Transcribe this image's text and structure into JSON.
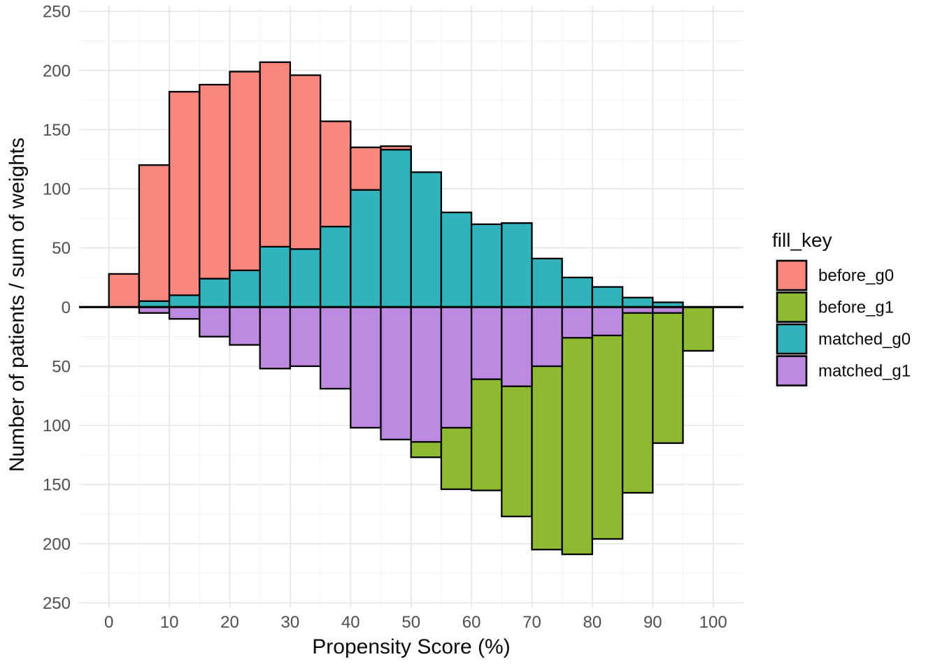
{
  "chart_data": {
    "type": "bar",
    "variant": "back-to-back mirror histogram (propensity score distribution before/after matching)",
    "title": "",
    "xlabel": "Propensity Score (%)",
    "ylabel": "Number of patients / sum of weights",
    "x_ticks": [
      0,
      10,
      20,
      30,
      40,
      50,
      60,
      70,
      80,
      90,
      100
    ],
    "y_ticks": [
      250,
      200,
      150,
      100,
      50,
      0,
      50,
      100,
      150,
      200,
      250
    ],
    "xlim": [
      0,
      100
    ],
    "ylim": [
      -250,
      250
    ],
    "grid": true,
    "bin_width": 5,
    "upper_series": [
      "before_g0",
      "matched_g0"
    ],
    "lower_series": [
      "before_g1",
      "matched_g1"
    ],
    "bins": [
      {
        "range": [
          0,
          5
        ],
        "before_g0": 28,
        "matched_g0": null,
        "before_g1": null,
        "matched_g1": null
      },
      {
        "range": [
          5,
          10
        ],
        "before_g0": 120,
        "matched_g0": 5,
        "before_g1": null,
        "matched_g1": 5
      },
      {
        "range": [
          10,
          15
        ],
        "before_g0": 182,
        "matched_g0": 10,
        "before_g1": null,
        "matched_g1": 10
      },
      {
        "range": [
          15,
          20
        ],
        "before_g0": 188,
        "matched_g0": 24,
        "before_g1": null,
        "matched_g1": 25
      },
      {
        "range": [
          20,
          25
        ],
        "before_g0": 199,
        "matched_g0": 31,
        "before_g1": null,
        "matched_g1": 32
      },
      {
        "range": [
          25,
          30
        ],
        "before_g0": 207,
        "matched_g0": 51,
        "before_g1": null,
        "matched_g1": 52
      },
      {
        "range": [
          30,
          35
        ],
        "before_g0": 196,
        "matched_g0": 49,
        "before_g1": null,
        "matched_g1": 50
      },
      {
        "range": [
          35,
          40
        ],
        "before_g0": 157,
        "matched_g0": 68,
        "before_g1": null,
        "matched_g1": 69
      },
      {
        "range": [
          40,
          45
        ],
        "before_g0": 135,
        "matched_g0": 99,
        "before_g1": null,
        "matched_g1": 102
      },
      {
        "range": [
          45,
          50
        ],
        "before_g0": 136,
        "matched_g0": 133,
        "before_g1": null,
        "matched_g1": 112
      },
      {
        "range": [
          50,
          55
        ],
        "before_g0": null,
        "matched_g0": 114,
        "before_g1": 127,
        "matched_g1": 114
      },
      {
        "range": [
          55,
          60
        ],
        "before_g0": null,
        "matched_g0": 80,
        "before_g1": 154,
        "matched_g1": 102
      },
      {
        "range": [
          60,
          65
        ],
        "before_g0": null,
        "matched_g0": 70,
        "before_g1": 155,
        "matched_g1": 61
      },
      {
        "range": [
          65,
          70
        ],
        "before_g0": null,
        "matched_g0": 71,
        "before_g1": 177,
        "matched_g1": 67
      },
      {
        "range": [
          70,
          75
        ],
        "before_g0": null,
        "matched_g0": 41,
        "before_g1": 205,
        "matched_g1": 50
      },
      {
        "range": [
          75,
          80
        ],
        "before_g0": null,
        "matched_g0": 25,
        "before_g1": 209,
        "matched_g1": 26
      },
      {
        "range": [
          80,
          85
        ],
        "before_g0": null,
        "matched_g0": 17,
        "before_g1": 196,
        "matched_g1": 24
      },
      {
        "range": [
          85,
          90
        ],
        "before_g0": null,
        "matched_g0": 8,
        "before_g1": 157,
        "matched_g1": 5
      },
      {
        "range": [
          90,
          95
        ],
        "before_g0": null,
        "matched_g0": 4,
        "before_g1": 115,
        "matched_g1": 5
      },
      {
        "range": [
          95,
          100
        ],
        "before_g0": null,
        "matched_g0": null,
        "before_g1": 37,
        "matched_g1": null
      }
    ],
    "colors": {
      "before_g0": "#F8877E",
      "before_g1": "#8DBA30",
      "matched_g0": "#30B3BC",
      "matched_g1": "#BE89E0",
      "bar_outline": "#000000",
      "grid_major": "#E4E4E4",
      "grid_minor": "#F1F1F1",
      "tick_text": "#4e4e4e",
      "baseline": "#000000"
    },
    "legend": {
      "title": "fill_key",
      "position": "right",
      "entries": [
        {
          "label": "before_g0",
          "color": "#F8877E"
        },
        {
          "label": "before_g1",
          "color": "#8DBA30"
        },
        {
          "label": "matched_g0",
          "color": "#30B3BC"
        },
        {
          "label": "matched_g1",
          "color": "#BE89E0"
        }
      ]
    }
  }
}
